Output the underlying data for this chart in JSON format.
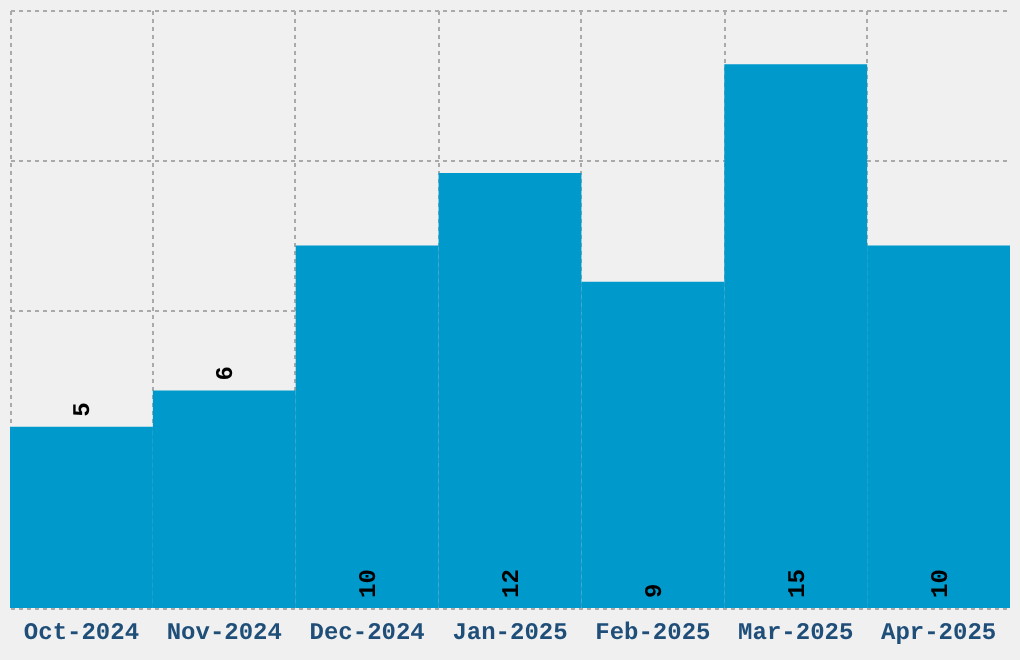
{
  "chart_data": {
    "type": "bar",
    "categories": [
      "Oct-2024",
      "Nov-2024",
      "Dec-2024",
      "Jan-2025",
      "Feb-2025",
      "Mar-2025",
      "Apr-2025"
    ],
    "values": [
      5,
      6,
      10,
      12,
      9,
      15,
      10
    ],
    "color": "#0099cc",
    "ylim": [
      0,
      16.5
    ],
    "yticks": [
      {
        "value": 0,
        "label": null
      },
      {
        "value": 4.125,
        "label": null
      },
      {
        "value": 8.25,
        "label": null
      },
      {
        "value": 12.375,
        "label": null
      },
      {
        "value": 16.5,
        "label": null
      }
    ],
    "grid": true,
    "data_labels": true,
    "tick_labels": "x"
  }
}
